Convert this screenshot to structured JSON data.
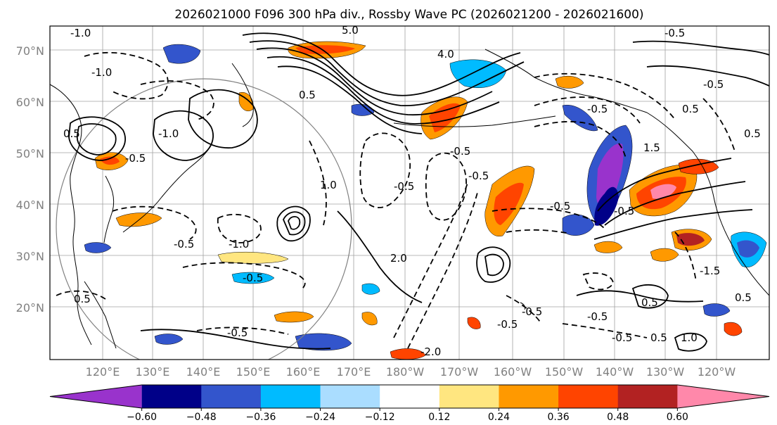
{
  "title": "2026021000 F096 300 hPa div., Rossby Wave PC (2026021200 - 2026021600)",
  "map": {
    "lat_labels": [
      "70°N",
      "60°N",
      "50°N",
      "40°N",
      "30°N",
      "20°N"
    ],
    "lon_labels": [
      "120°E",
      "130°E",
      "140°E",
      "150°E",
      "160°E",
      "170°E",
      "180°W",
      "170°W",
      "160°W",
      "150°W",
      "140°W",
      "130°W",
      "120°W"
    ],
    "contour_labels": [
      "-1.0",
      "-0.5",
      "5.0",
      "4.0",
      "-1.0",
      "-0.5",
      "0.5",
      "-0.5",
      "-1.0",
      "-0.5",
      "-0.5",
      "0.5",
      "1.0",
      "-1.0",
      "-0.5",
      "-0.5",
      "2.0",
      "-0.5",
      "-0.5",
      "0.5",
      "-0.5",
      "-0.5",
      "0.5",
      "-0.5",
      "-0.5",
      "-0.5",
      "0.5",
      "1.0",
      "-0.5",
      "-2.0",
      "0.5",
      "0.5",
      "1.5",
      "-1.5",
      "-0.5",
      "0.5"
    ]
  },
  "colorbar": {
    "colors": [
      "#9933cc",
      "#000088",
      "#3355cc",
      "#00bbff",
      "#aaddff",
      "#ffffff",
      "#ffe680",
      "#ff9900",
      "#ff4400",
      "#b22222",
      "#ff88aa"
    ],
    "tick_labels": [
      "−0.60",
      "−0.48",
      "−0.36",
      "−0.24",
      "−0.12",
      "0.12",
      "0.24",
      "0.36",
      "0.48",
      "0.60"
    ]
  }
}
